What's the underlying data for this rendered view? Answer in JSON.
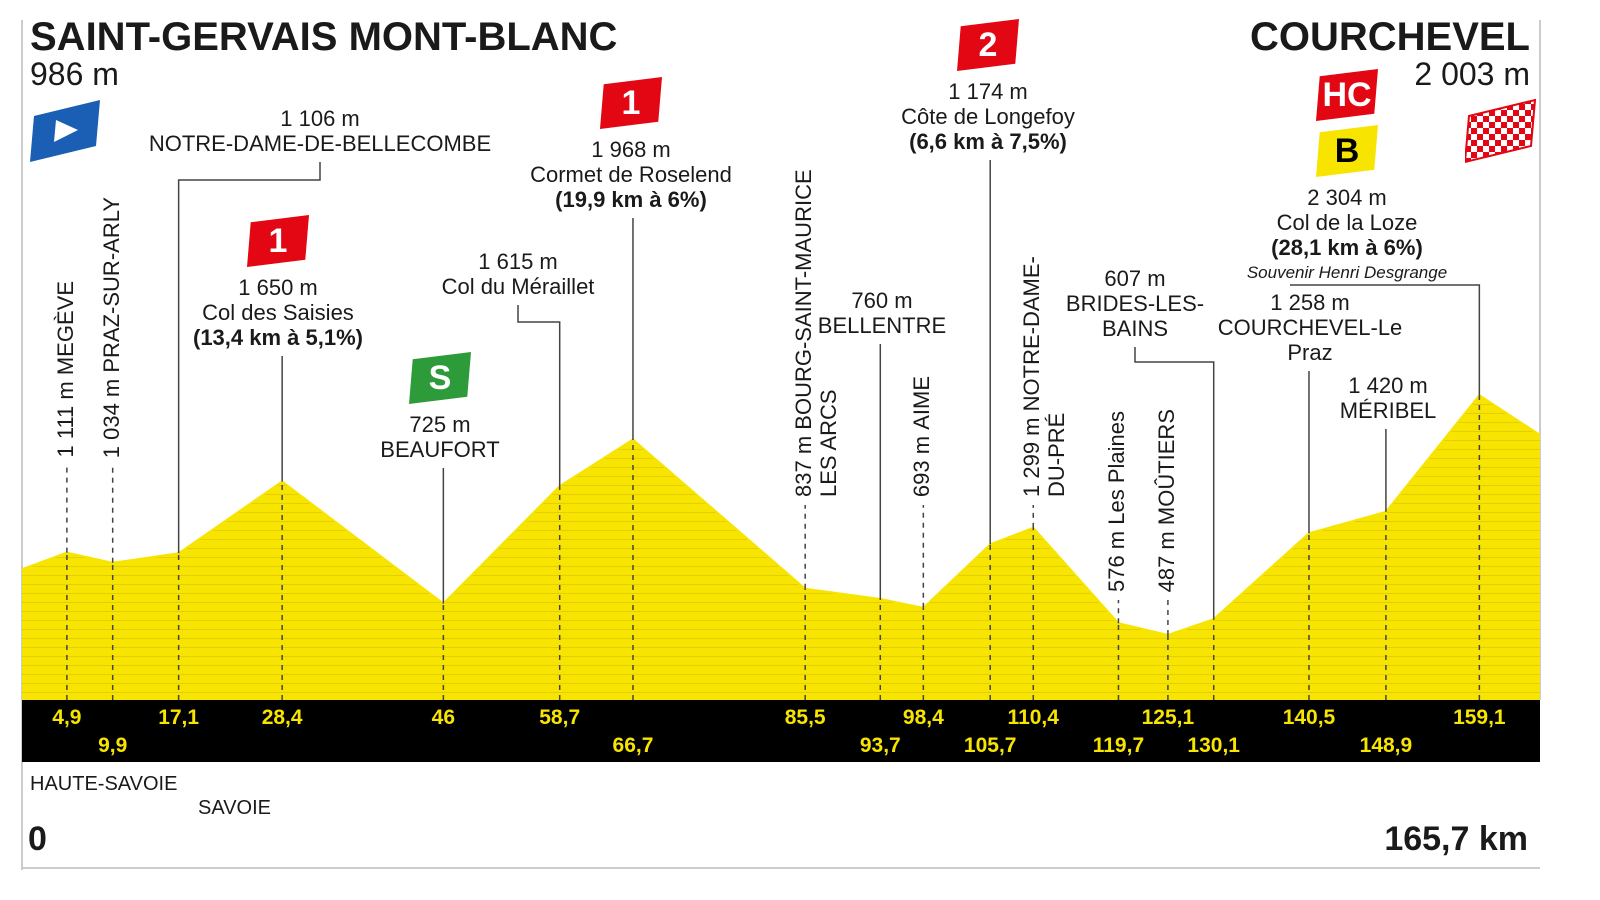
{
  "chart_data": {
    "type": "area",
    "x": [
      0,
      4.9,
      9.9,
      17.1,
      28.4,
      46,
      58.7,
      66.7,
      85.5,
      93.7,
      98.4,
      105.7,
      110.4,
      119.7,
      125.1,
      130.1,
      140.5,
      148.9,
      159.1,
      165.7
    ],
    "x_labels": [
      "0",
      "4,9",
      "9,9",
      "17,1",
      "28,4",
      "46",
      "58,7",
      "66,7",
      "85,5",
      "93,7",
      "98,4",
      "105,7",
      "110,4",
      "119,7",
      "125,1",
      "130,1",
      "140,5",
      "148,9",
      "159,1",
      "165,7 km"
    ],
    "values": [
      986,
      1111,
      1034,
      1106,
      1650,
      725,
      1615,
      1968,
      837,
      760,
      693,
      1174,
      1299,
      576,
      487,
      607,
      1258,
      1420,
      2304,
      2003
    ],
    "value_labels": [
      "986 m",
      "1 111 m",
      "1 034 m",
      "1 106 m",
      "1 650 m",
      "725 m",
      "1 615 m",
      "1 968 m",
      "837 m",
      "760 m",
      "693 m",
      "1 174 m",
      "1 299 m",
      "576 m",
      "487 m",
      "607 m",
      "1 258 m",
      "1 420 m",
      "2 304 m",
      "2 003 m"
    ],
    "names": [
      "SAINT-GERVAIS MONT-BLANC",
      "MEGÈVE",
      "PRAZ-SUR-ARLY",
      "NOTRE-DAME-DE-BELLECOMBE",
      "Col des Saisies",
      "BEAUFORT",
      "Col du Méraillet",
      "Cormet de Roselend",
      "BOURG-SAINT-MAURICE LES ARCS",
      "BELLENTRE",
      "AIME",
      "Côte de Longefoy",
      "NOTRE-DAME-DU-PRÉ",
      "Les Plaines",
      "MOÛTIERS",
      "BRIDES-LES-BAINS",
      "COURCHEVEL-Le Praz",
      "MÉRIBEL",
      "Col de la Loze",
      "COURCHEVEL"
    ],
    "details": [
      null,
      null,
      null,
      null,
      "(13,4 km à 5,1%)",
      null,
      null,
      "(19,9 km à 6%)",
      null,
      null,
      null,
      "(6,6 km à 7,5%)",
      null,
      null,
      null,
      null,
      null,
      null,
      "(28,1 km à 6%)",
      null
    ],
    "notes": [
      null,
      null,
      null,
      null,
      null,
      null,
      null,
      null,
      null,
      null,
      null,
      null,
      null,
      null,
      null,
      null,
      null,
      null,
      "Souvenir Henri Desgrange",
      null
    ],
    "badges": [
      null,
      null,
      null,
      null,
      [
        {
          "text": "1",
          "color": "#e30613",
          "text_color": "#ffffff"
        }
      ],
      [
        {
          "text": "S",
          "color": "#2e9b3a",
          "text_color": "#ffffff"
        }
      ],
      null,
      [
        {
          "text": "1",
          "color": "#e30613",
          "text_color": "#ffffff"
        }
      ],
      null,
      null,
      null,
      [
        {
          "text": "2",
          "color": "#e30613",
          "text_color": "#ffffff"
        }
      ],
      null,
      null,
      null,
      null,
      null,
      null,
      [
        {
          "text": "HC",
          "color": "#e30613",
          "text_color": "#ffffff"
        },
        {
          "text": "B",
          "color": "#f7e400",
          "text_color": "#000000"
        }
      ],
      null
    ],
    "regions": [
      "HAUTE-SAVOIE",
      "SAVOIE"
    ],
    "color": "#f7e400"
  }
}
